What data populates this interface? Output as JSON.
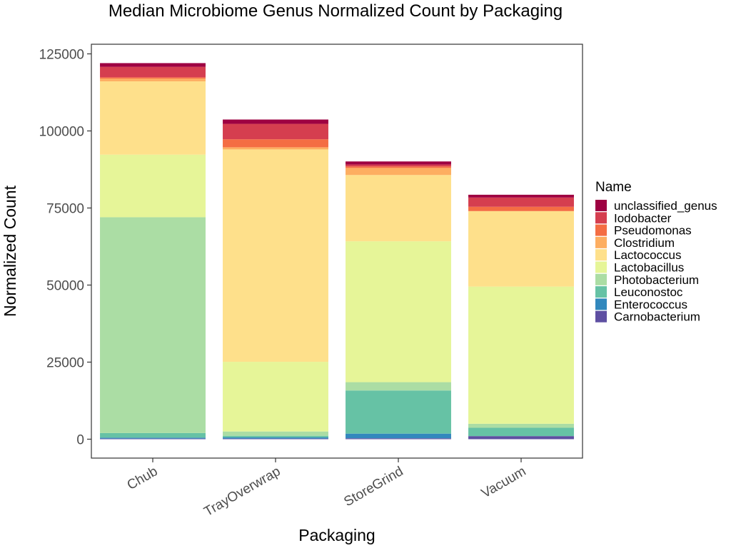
{
  "chart_data": {
    "type": "bar",
    "stacked": true,
    "title": "Median Microbiome Genus Normalized Count by Packaging",
    "xlabel": "Packaging",
    "ylabel": "Normalized Count",
    "ylim": [
      -6000,
      128000
    ],
    "yticks": [
      0,
      25000,
      50000,
      75000,
      100000,
      125000
    ],
    "ytick_labels": [
      "0",
      "25000",
      "50000",
      "75000",
      "100000",
      "125000"
    ],
    "grid": false,
    "legend_title": "Name",
    "legend_position": "right",
    "categories": [
      "Chub",
      "TrayOverwrap",
      "StoreGrind",
      "Vacuum"
    ],
    "series": [
      {
        "name": "Carnobacterium",
        "color": "#5E4FA2",
        "values": [
          200,
          200,
          300,
          1000
        ]
      },
      {
        "name": "Enterococcus",
        "color": "#3288BD",
        "values": [
          300,
          400,
          1500,
          0
        ]
      },
      {
        "name": "Leuconostoc",
        "color": "#66C2A5",
        "values": [
          1500,
          500,
          14000,
          2700
        ]
      },
      {
        "name": "Photobacterium",
        "color": "#ABDDA4",
        "values": [
          70000,
          1400,
          2700,
          1300
        ]
      },
      {
        "name": "Lactobacillus",
        "color": "#E6F598",
        "values": [
          20300,
          22600,
          45700,
          44500
        ]
      },
      {
        "name": "Lactococcus",
        "color": "#FEE08B",
        "values": [
          23800,
          68900,
          21500,
          24500
        ]
      },
      {
        "name": "Clostridium",
        "color": "#FDAE61",
        "values": [
          900,
          700,
          2300,
          0
        ]
      },
      {
        "name": "Pseudomonas",
        "color": "#F46D43",
        "values": [
          400,
          2600,
          500,
          1400
        ]
      },
      {
        "name": "Iodobacter",
        "color": "#D53E4F",
        "values": [
          3400,
          5000,
          600,
          3000
        ]
      },
      {
        "name": "unclassified_genus",
        "color": "#9E0142",
        "values": [
          1200,
          1400,
          1000,
          900
        ]
      }
    ]
  }
}
